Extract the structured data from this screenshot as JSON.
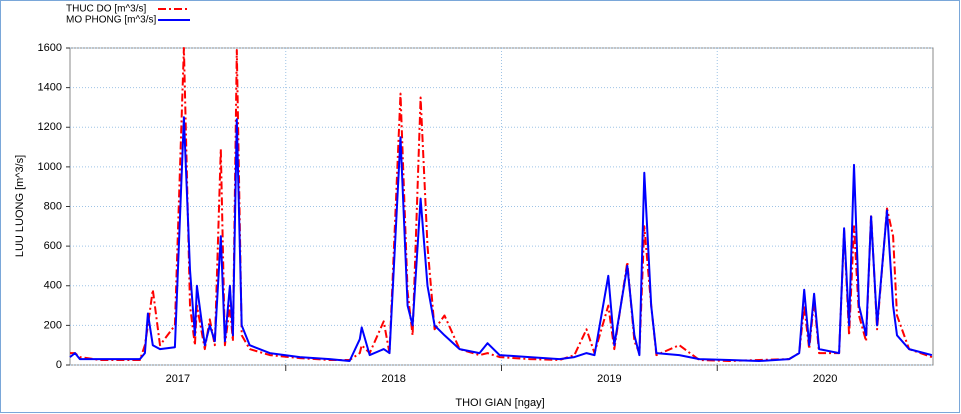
{
  "chart_data": {
    "type": "line",
    "xlabel": "THOI GIAN [ngay]",
    "ylabel": "LUU LUONG [m^3/s]",
    "xlim": [
      2017,
      2021
    ],
    "ylim": [
      0,
      1600
    ],
    "xticks": [
      {
        "value": 2017.5,
        "label": "2017"
      },
      {
        "value": 2018.5,
        "label": "2018"
      },
      {
        "value": 2019.5,
        "label": "2019"
      },
      {
        "value": 2020.5,
        "label": "2020"
      }
    ],
    "xgrid": [
      2018,
      2019,
      2020
    ],
    "yticks": [
      0,
      200,
      400,
      600,
      800,
      1000,
      1200,
      1400,
      1600
    ],
    "grid": true,
    "legend": "top-left",
    "x": [
      2017.0,
      2017.023,
      2017.046,
      2017.139,
      2017.324,
      2017.347,
      2017.361,
      2017.384,
      2017.417,
      2017.486,
      2017.528,
      2017.556,
      2017.579,
      2017.588,
      2017.625,
      2017.648,
      2017.671,
      2017.699,
      2017.718,
      2017.741,
      2017.755,
      2017.773,
      2017.796,
      2017.833,
      2017.926,
      2018.065,
      2018.204,
      2018.296,
      2018.343,
      2018.352,
      2018.389,
      2018.454,
      2018.481,
      2018.532,
      2018.565,
      2018.588,
      2018.625,
      2018.657,
      2018.69,
      2018.736,
      2018.806,
      2018.898,
      2018.935,
      2018.991,
      2019.13,
      2019.269,
      2019.338,
      2019.394,
      2019.431,
      2019.495,
      2019.523,
      2019.583,
      2019.616,
      2019.639,
      2019.662,
      2019.694,
      2019.718,
      2019.824,
      2019.917,
      2020.056,
      2020.194,
      2020.333,
      2020.38,
      2020.403,
      2020.426,
      2020.449,
      2020.472,
      2020.565,
      2020.588,
      2020.611,
      2020.634,
      2020.657,
      2020.69,
      2020.713,
      2020.741,
      2020.787,
      2020.815,
      2020.833,
      2020.889,
      2020.995
    ],
    "series": [
      {
        "name": "THUC DO   [m^3/s]",
        "color": "#ff0000",
        "dash": true,
        "values": [
          60,
          60,
          40,
          25,
          25,
          100,
          200,
          380,
          100,
          200,
          1600,
          300,
          100,
          300,
          80,
          230,
          100,
          1090,
          100,
          300,
          120,
          1590,
          150,
          80,
          50,
          35,
          25,
          25,
          60,
          100,
          60,
          220,
          60,
          1370,
          370,
          150,
          1350,
          600,
          180,
          250,
          80,
          50,
          60,
          40,
          30,
          25,
          50,
          180,
          60,
          300,
          80,
          520,
          120,
          60,
          700,
          300,
          50,
          100,
          25,
          20,
          25,
          30,
          60,
          300,
          80,
          330,
          60,
          60,
          680,
          150,
          700,
          250,
          120,
          760,
          180,
          790,
          650,
          250,
          80,
          40
        ]
      },
      {
        "name": "MO PHONG [m^3/s]",
        "color": "#0000ff",
        "dash": false,
        "values": [
          40,
          60,
          30,
          30,
          30,
          60,
          260,
          100,
          80,
          90,
          1250,
          480,
          150,
          400,
          100,
          200,
          120,
          650,
          120,
          400,
          150,
          1240,
          200,
          100,
          60,
          40,
          30,
          20,
          130,
          190,
          50,
          80,
          60,
          1150,
          300,
          200,
          840,
          400,
          200,
          150,
          80,
          60,
          110,
          50,
          40,
          30,
          40,
          60,
          50,
          450,
          100,
          500,
          150,
          50,
          970,
          300,
          60,
          50,
          30,
          25,
          20,
          30,
          60,
          380,
          100,
          360,
          80,
          60,
          690,
          200,
          1010,
          300,
          150,
          750,
          200,
          780,
          300,
          150,
          80,
          50
        ]
      }
    ]
  }
}
